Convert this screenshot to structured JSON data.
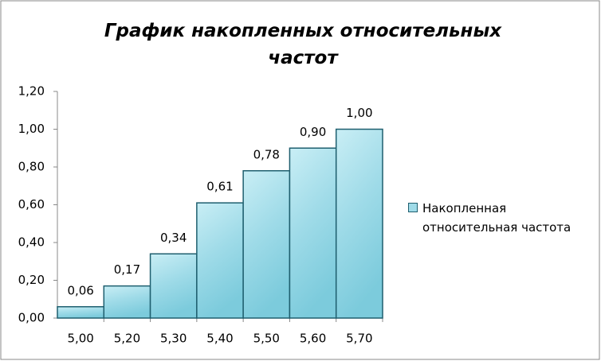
{
  "chart_data": {
    "type": "bar",
    "title": "График  накопленных  относительных частот",
    "categories": [
      "5,00",
      "5,20",
      "5,30",
      "5,40",
      "5,50",
      "5,60",
      "5,70"
    ],
    "series": [
      {
        "name": "Накопленная относительная частота",
        "color": "#9fdbe8",
        "values": [
          0.06,
          0.17,
          0.34,
          0.61,
          0.78,
          0.9,
          1.0
        ],
        "value_labels": [
          "0,06",
          "0,17",
          "0,34",
          "0,61",
          "0,78",
          "0,90",
          "1,00"
        ]
      }
    ],
    "ylim": [
      0,
      1.2
    ],
    "yticks": [
      {
        "value": 0,
        "label": "0,00"
      },
      {
        "value": 0.2,
        "label": "0,20"
      },
      {
        "value": 0.4,
        "label": "0,40"
      },
      {
        "value": 0.6,
        "label": "0,60"
      },
      {
        "value": 0.8,
        "label": "0,80"
      },
      {
        "value": 1.0,
        "label": "1,00"
      },
      {
        "value": 1.2,
        "label": "1,20"
      }
    ],
    "grid": false,
    "legend": "right"
  }
}
